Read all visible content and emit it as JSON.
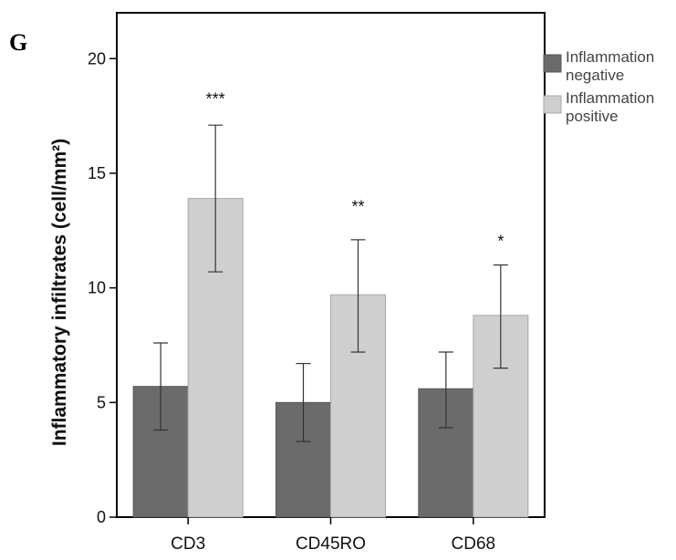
{
  "panel_label": "G",
  "chart_data": {
    "type": "bar",
    "title": "",
    "xlabel": "",
    "ylabel": "Inflammatory infiltrates (cell/mm²)",
    "ylim": [
      0,
      22
    ],
    "yticks": [
      0,
      5,
      10,
      15,
      20
    ],
    "grid": false,
    "legend_position": "right",
    "categories": [
      "CD3",
      "CD45RO",
      "CD68"
    ],
    "series": [
      {
        "name": "Inflammation negative",
        "name_lines": [
          "Inflammation",
          "negative"
        ],
        "color": "#6b6b6b",
        "values": [
          5.7,
          5.0,
          5.6
        ],
        "error_low": [
          3.8,
          3.3,
          3.9
        ],
        "error_high": [
          7.6,
          6.7,
          7.2
        ]
      },
      {
        "name": "Inflammation positive",
        "name_lines": [
          "Inflammation",
          "positive"
        ],
        "color": "#cfcfcf",
        "values": [
          13.9,
          9.7,
          8.8
        ],
        "error_low": [
          10.7,
          7.2,
          6.5
        ],
        "error_high": [
          17.1,
          12.1,
          11.0
        ]
      }
    ],
    "significance": [
      "***",
      "**",
      "*"
    ],
    "significance_y": [
      18.0,
      13.3,
      11.8
    ]
  }
}
